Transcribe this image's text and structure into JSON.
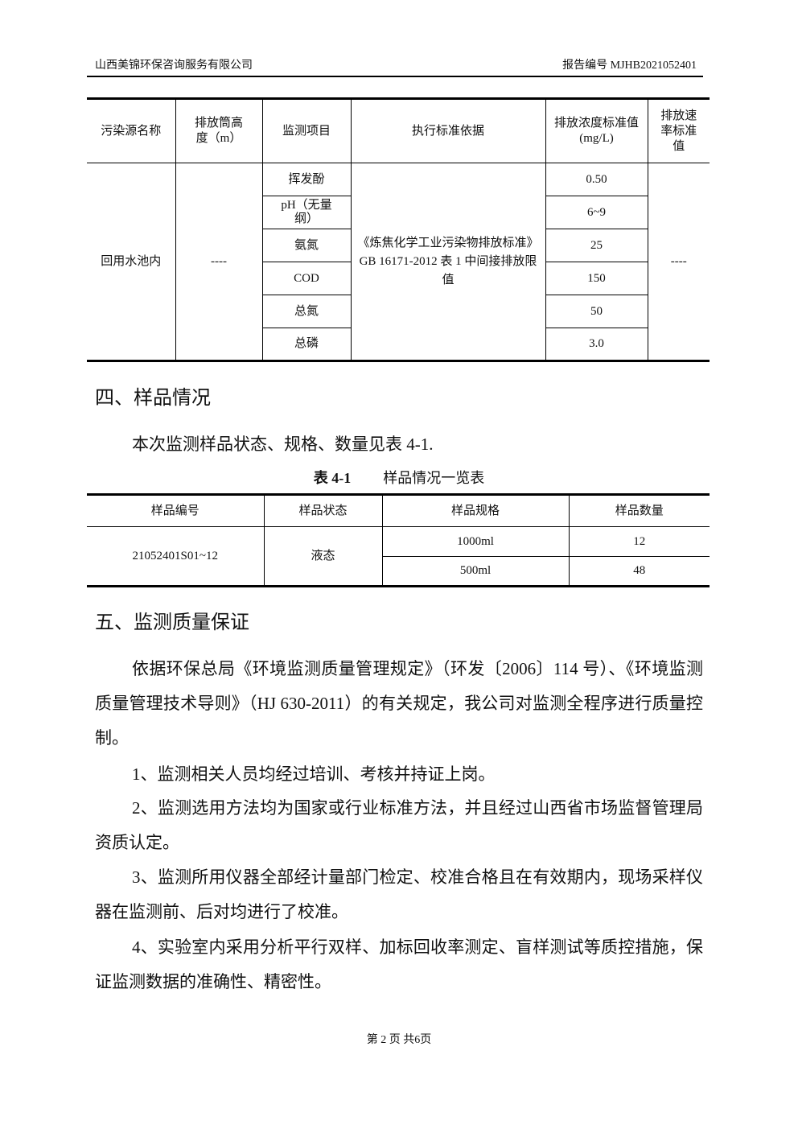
{
  "header": {
    "company": "山西美锦环保咨询服务有限公司",
    "report_no": "报告编号 MJHB2021052401"
  },
  "table1": {
    "headers": [
      "污染源名称",
      "排放筒高度（m）",
      "监测项目",
      "执行标准依据",
      "排放浓度标准值(mg/L)",
      "排放速率标准值"
    ],
    "source": "回用水池内",
    "height": "----",
    "standard": "《炼焦化学工业污染物排放标准》GB 16171-2012 表 1 中间接排放限值",
    "rate": "----",
    "items": [
      {
        "item": "挥发酚",
        "value": "0.50"
      },
      {
        "item": "pH（无量纲）",
        "value": "6~9"
      },
      {
        "item": "氨氮",
        "value": "25"
      },
      {
        "item": "COD",
        "value": "150"
      },
      {
        "item": "总氮",
        "value": "50"
      },
      {
        "item": "总磷",
        "value": "3.0"
      }
    ]
  },
  "section4": {
    "title": "四、样品情况",
    "intro": "本次监测样品状态、规格、数量见表 4-1.",
    "caption_no": "表 4-1",
    "caption": "样品情况一览表"
  },
  "table2": {
    "headers": [
      "样品编号",
      "样品状态",
      "样品规格",
      "样品数量"
    ],
    "sample_id": "21052401S01~12",
    "state": "液态",
    "rows": [
      {
        "spec": "1000ml",
        "qty": "12"
      },
      {
        "spec": "500ml",
        "qty": "48"
      }
    ]
  },
  "section5": {
    "title": "五、监测质量保证",
    "paragraphs": [
      "依据环保总局《环境监测质量管理规定》（环发〔2006〕114 号）、《环境监测质量管理技术导则》（HJ 630-2011）的有关规定，我公司对监测全程序进行质量控制。",
      "1、监测相关人员均经过培训、考核并持证上岗。",
      "2、监测选用方法均为国家或行业标准方法，并且经过山西省市场监督管理局资质认定。",
      "3、监测所用仪器全部经计量部门检定、校准合格且在有效期内，现场采样仪器在监测前、后对均进行了校准。",
      "4、实验室内采用分析平行双样、加标回收率测定、盲样测试等质控措施，保证监测数据的准确性、精密性。"
    ]
  },
  "footer": "第 2 页 共6页"
}
